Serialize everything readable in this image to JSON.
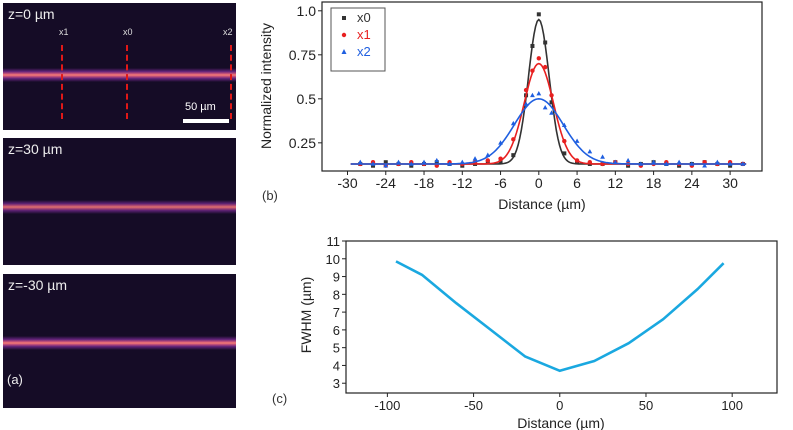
{
  "panel_a": {
    "label": "(a)",
    "images": [
      {
        "title": "z=0 µm"
      },
      {
        "title": "z=30 µm"
      },
      {
        "title": "z=-30 µm"
      }
    ],
    "markers": [
      "x1",
      "x0",
      "x2"
    ],
    "scale_bar": "50 µm",
    "marker_color": "#e01818"
  },
  "chart_data": [
    {
      "type": "scatter",
      "panel_label": "(b)",
      "xlabel": "Distance (µm)",
      "ylabel": "Normalized intensity",
      "xlim": [
        -34,
        35
      ],
      "ylim": [
        0.09,
        1.05
      ],
      "xticks": [
        "-30",
        "-24",
        "-18",
        "-12",
        "-6",
        "0",
        "6",
        "12",
        "18",
        "24",
        "30"
      ],
      "yticks": [
        "0.25",
        "0.5",
        "0.75",
        "1.0"
      ],
      "legend": "top-left",
      "grid": false,
      "x": [
        -28,
        -26,
        -24,
        -22,
        -20,
        -18,
        -16,
        -14,
        -12,
        -10,
        -8,
        -6,
        -4,
        -2,
        -1,
        0,
        1,
        2,
        4,
        6,
        8,
        10,
        12,
        14,
        16,
        18,
        20,
        22,
        24,
        26,
        28,
        30,
        32
      ],
      "series": [
        {
          "name": "x0",
          "color": "#333333",
          "marker": "square",
          "fit": {
            "baseline": 0.13,
            "peak": 0.95,
            "center": 0,
            "fwhm": 3.8
          },
          "values": [
            0.13,
            0.12,
            0.14,
            0.13,
            0.12,
            0.13,
            0.14,
            0.13,
            0.12,
            0.13,
            0.14,
            0.14,
            0.18,
            0.52,
            0.8,
            0.98,
            0.82,
            0.48,
            0.19,
            0.14,
            0.13,
            0.13,
            0.14,
            0.12,
            0.13,
            0.14,
            0.13,
            0.12,
            0.13,
            0.14,
            0.13,
            0.12,
            0.13
          ]
        },
        {
          "name": "x1",
          "color": "#e82020",
          "marker": "circle",
          "fit": {
            "baseline": 0.13,
            "peak": 0.7,
            "center": 0,
            "fwhm": 5.4
          },
          "values": [
            0.13,
            0.14,
            0.12,
            0.13,
            0.14,
            0.13,
            0.12,
            0.14,
            0.13,
            0.14,
            0.15,
            0.16,
            0.27,
            0.55,
            0.66,
            0.73,
            0.68,
            0.52,
            0.26,
            0.15,
            0.14,
            0.13,
            0.14,
            0.13,
            0.12,
            0.13,
            0.14,
            0.13,
            0.12,
            0.14,
            0.13,
            0.14,
            0.13
          ]
        },
        {
          "name": "x2",
          "color": "#1f5fe0",
          "marker": "triangle",
          "fit": {
            "baseline": 0.13,
            "peak": 0.5,
            "center": 0,
            "fwhm": 9.0
          },
          "values": [
            0.14,
            0.13,
            0.12,
            0.14,
            0.13,
            0.14,
            0.15,
            0.13,
            0.14,
            0.16,
            0.18,
            0.25,
            0.36,
            0.47,
            0.52,
            0.53,
            0.45,
            0.42,
            0.35,
            0.26,
            0.2,
            0.17,
            0.14,
            0.15,
            0.13,
            0.14,
            0.13,
            0.14,
            0.13,
            0.12,
            0.14,
            0.13,
            0.13
          ]
        }
      ]
    },
    {
      "type": "line",
      "panel_label": "(c)",
      "xlabel": "Distance (µm)",
      "ylabel": "FWHM (µm)",
      "xlim": [
        -124,
        126
      ],
      "ylim": [
        2.45,
        11
      ],
      "xticks": [
        "-100",
        "-50",
        "0",
        "50",
        "100"
      ],
      "yticks": [
        "3",
        "4",
        "5",
        "6",
        "7",
        "8",
        "9",
        "10",
        "11"
      ],
      "grid": false,
      "color": "#1aa8e0",
      "x": [
        -95,
        -80,
        -60,
        -40,
        -20,
        0,
        20,
        40,
        60,
        80,
        95
      ],
      "values": [
        9.85,
        9.1,
        7.5,
        6.0,
        4.5,
        3.7,
        4.25,
        5.25,
        6.6,
        8.3,
        9.75
      ]
    }
  ]
}
